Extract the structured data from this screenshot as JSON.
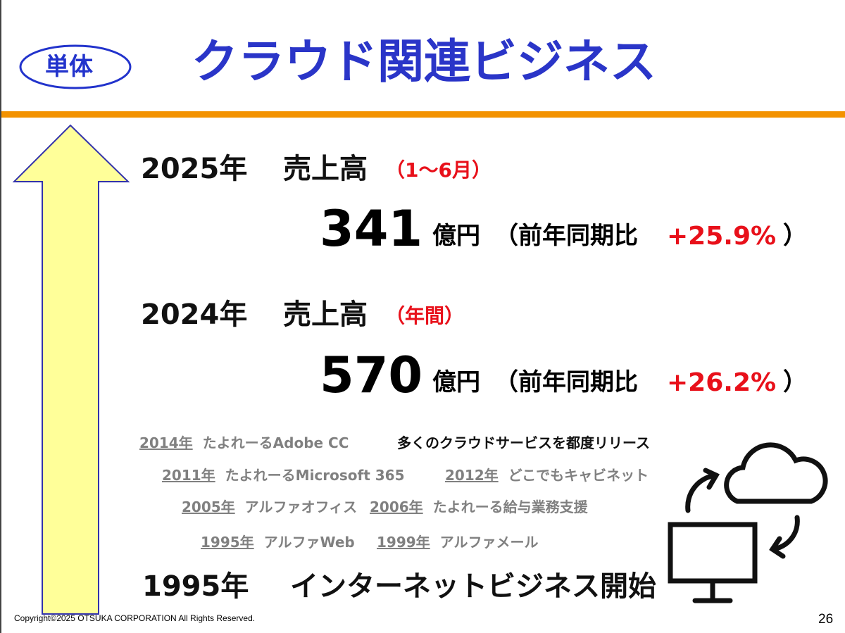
{
  "header": {
    "badge": "単体",
    "title": "クラウド関連ビジネス"
  },
  "sections": [
    {
      "year": "2025年",
      "label": "売上高",
      "period": "（1～6月）",
      "amount": "341",
      "unit": "億円",
      "comparison": "（前年同期比",
      "growth": "+25.9%",
      "close": "）"
    },
    {
      "year": "2024年",
      "label": "売上高",
      "period": "（年間）",
      "amount": "570",
      "unit": "億円",
      "comparison": "（前年同期比",
      "growth": "+26.2%",
      "close": "）"
    }
  ],
  "timeline": {
    "rows": [
      [
        {
          "year": "2014年",
          "name": "たよれーるAdobe CC"
        }
      ],
      [
        {
          "year": "2011年",
          "name": "たよれーるMicrosoft 365"
        },
        {
          "year": "2012年",
          "name": "どこでもキャビネット"
        }
      ],
      [
        {
          "year": "2005年",
          "name": "アルファオフィス"
        },
        {
          "year": "2006年",
          "name": "たよれーる給与業務支援"
        }
      ],
      [
        {
          "year": "1995年",
          "name": "アルファWeb"
        },
        {
          "year": "1999年",
          "name": "アルファメール"
        }
      ]
    ],
    "note": "多くのクラウドサービスを都度リリース"
  },
  "milestone": {
    "year": "1995年",
    "text": "インターネットビジネス開始"
  },
  "footer": {
    "copyright": "Copyright©2025 OTSUKA CORPORATION All Rights Reserved.",
    "page": "26"
  }
}
